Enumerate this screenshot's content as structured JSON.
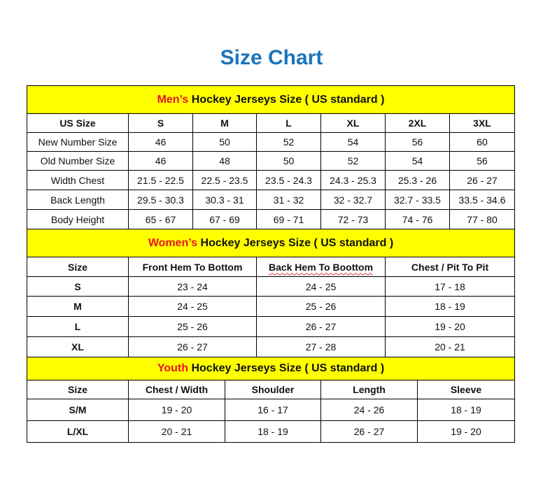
{
  "title": "Size Chart",
  "colors": {
    "title": "#1b75bc",
    "section_header_bg": "#ffff00",
    "section_prefix": "#e8141c"
  },
  "mens": {
    "prefix": "Men’s",
    "suffix": " Hockey Jerseys Size ( US standard )",
    "columns": [
      "US Size",
      "S",
      "M",
      "L",
      "XL",
      "2XL",
      "3XL"
    ],
    "rows": [
      [
        "New Number Size",
        "46",
        "50",
        "52",
        "54",
        "56",
        "60"
      ],
      [
        "Old Number Size",
        "46",
        "48",
        "50",
        "52",
        "54",
        "56"
      ],
      [
        "Width Chest",
        "21.5 - 22.5",
        "22.5 - 23.5",
        "23.5 - 24.3",
        "24.3 - 25.3",
        "25.3 - 26",
        "26 - 27"
      ],
      [
        "Back Length",
        "29.5 - 30.3",
        "30.3 - 31",
        "31 - 32",
        "32 - 32.7",
        "32.7 - 33.5",
        "33.5 - 34.6"
      ],
      [
        "Body Height",
        "65 - 67",
        "67 - 69",
        "69 - 71",
        "72 - 73",
        "74 - 76",
        "77 - 80"
      ]
    ]
  },
  "womens": {
    "prefix": "Women’s",
    "suffix": " Hockey Jerseys Size ( US standard )",
    "columns": [
      "Size",
      "Front Hem To Bottom",
      "Back Hem To Boottom",
      "Chest / Pit To Pit"
    ],
    "rows": [
      [
        "S",
        "23 - 24",
        "24 - 25",
        "17 - 18"
      ],
      [
        "M",
        "24 - 25",
        "25 - 26",
        "18 - 19"
      ],
      [
        "L",
        "25 - 26",
        "26 - 27",
        "19 - 20"
      ],
      [
        "XL",
        "26 - 27",
        "27 - 28",
        "20 - 21"
      ]
    ]
  },
  "youth": {
    "prefix": "Youth",
    "suffix": " Hockey Jerseys Size ( US standard )",
    "columns": [
      "Size",
      "Chest / Width",
      "Shoulder",
      "Length",
      "Sleeve"
    ],
    "rows": [
      [
        "S/M",
        "19 - 20",
        "16 - 17",
        "24 - 26",
        "18 - 19"
      ],
      [
        "L/XL",
        "20 - 21",
        "18 - 19",
        "26 - 27",
        "19 - 20"
      ]
    ]
  }
}
